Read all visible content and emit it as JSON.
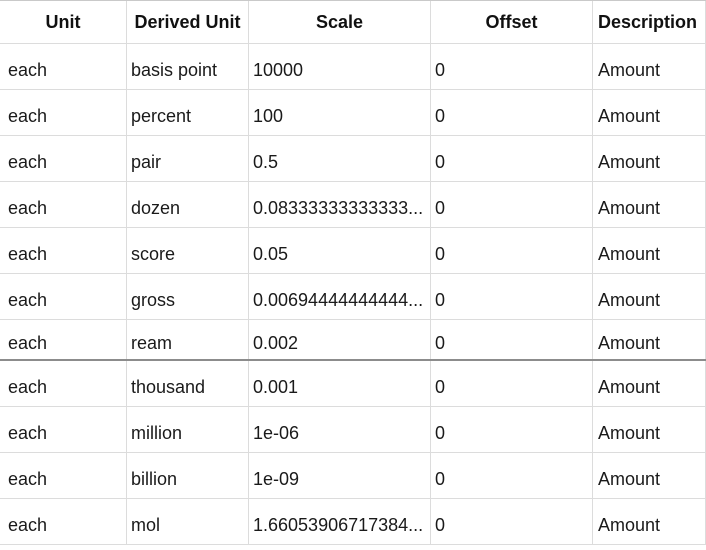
{
  "table": {
    "columns": [
      "Unit",
      "Derived Unit",
      "Scale",
      "Offset",
      "Description"
    ],
    "rows": [
      {
        "unit": "each",
        "derived": "basis point",
        "scale": "10000",
        "offset": "0",
        "description": "Amount"
      },
      {
        "unit": "each",
        "derived": "percent",
        "scale": "100",
        "offset": "0",
        "description": "Amount"
      },
      {
        "unit": "each",
        "derived": "pair",
        "scale": "0.5",
        "offset": "0",
        "description": "Amount"
      },
      {
        "unit": "each",
        "derived": "dozen",
        "scale": "0.08333333333333...",
        "offset": "0",
        "description": "Amount"
      },
      {
        "unit": "each",
        "derived": "score",
        "scale": "0.05",
        "offset": "0",
        "description": "Amount"
      },
      {
        "unit": "each",
        "derived": "gross",
        "scale": "0.00694444444444...",
        "offset": "0",
        "description": "Amount"
      },
      {
        "unit": "each",
        "derived": "ream",
        "scale": "0.002",
        "offset": "0",
        "description": "Amount"
      },
      {
        "unit": "each",
        "derived": "thousand",
        "scale": "0.001",
        "offset": "0",
        "description": "Amount"
      },
      {
        "unit": "each",
        "derived": "million",
        "scale": "1e-06",
        "offset": "0",
        "description": "Amount"
      },
      {
        "unit": "each",
        "derived": "billion",
        "scale": "1e-09",
        "offset": "0",
        "description": "Amount"
      },
      {
        "unit": "each",
        "derived": "mol",
        "scale": "1.66053906717384...",
        "offset": "0",
        "description": "Amount"
      }
    ]
  }
}
